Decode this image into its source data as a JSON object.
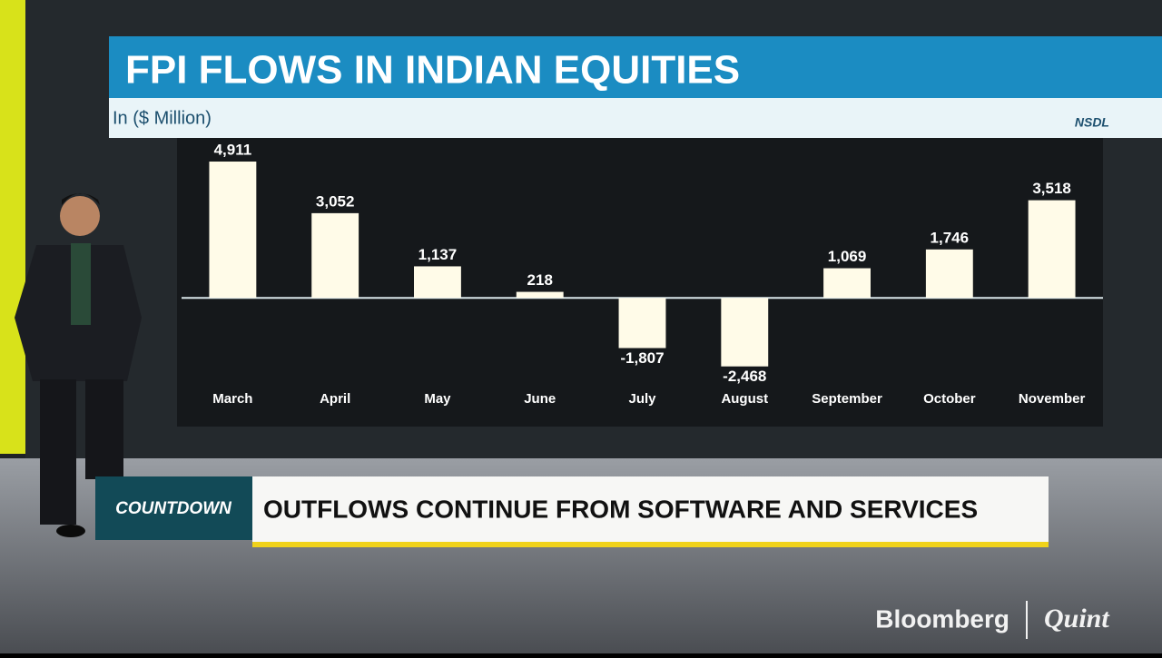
{
  "chart_data": {
    "type": "bar",
    "title": "FPI FLOWS IN INDIAN EQUITIES",
    "subtitle": "In ($ Million)",
    "source": "NSDL",
    "categories": [
      "March",
      "April",
      "May",
      "June",
      "July",
      "August",
      "September",
      "October",
      "November"
    ],
    "values": [
      4911,
      3052,
      1137,
      218,
      -1807,
      -2468,
      1069,
      1746,
      3518
    ],
    "value_labels": [
      "4,911",
      "3,052",
      "1,137",
      "218",
      "-1,807",
      "-2,468",
      "1,069",
      "1,746",
      "3,518"
    ],
    "color": "#fffbe8",
    "ylim": [
      -3000,
      5500
    ]
  },
  "ticker": {
    "tag": "COUNTDOWN",
    "headline": "OUTFLOWS CONTINUE FROM SOFTWARE AND SERVICES"
  },
  "logo": {
    "left": "Bloomberg",
    "right": "Quint"
  }
}
